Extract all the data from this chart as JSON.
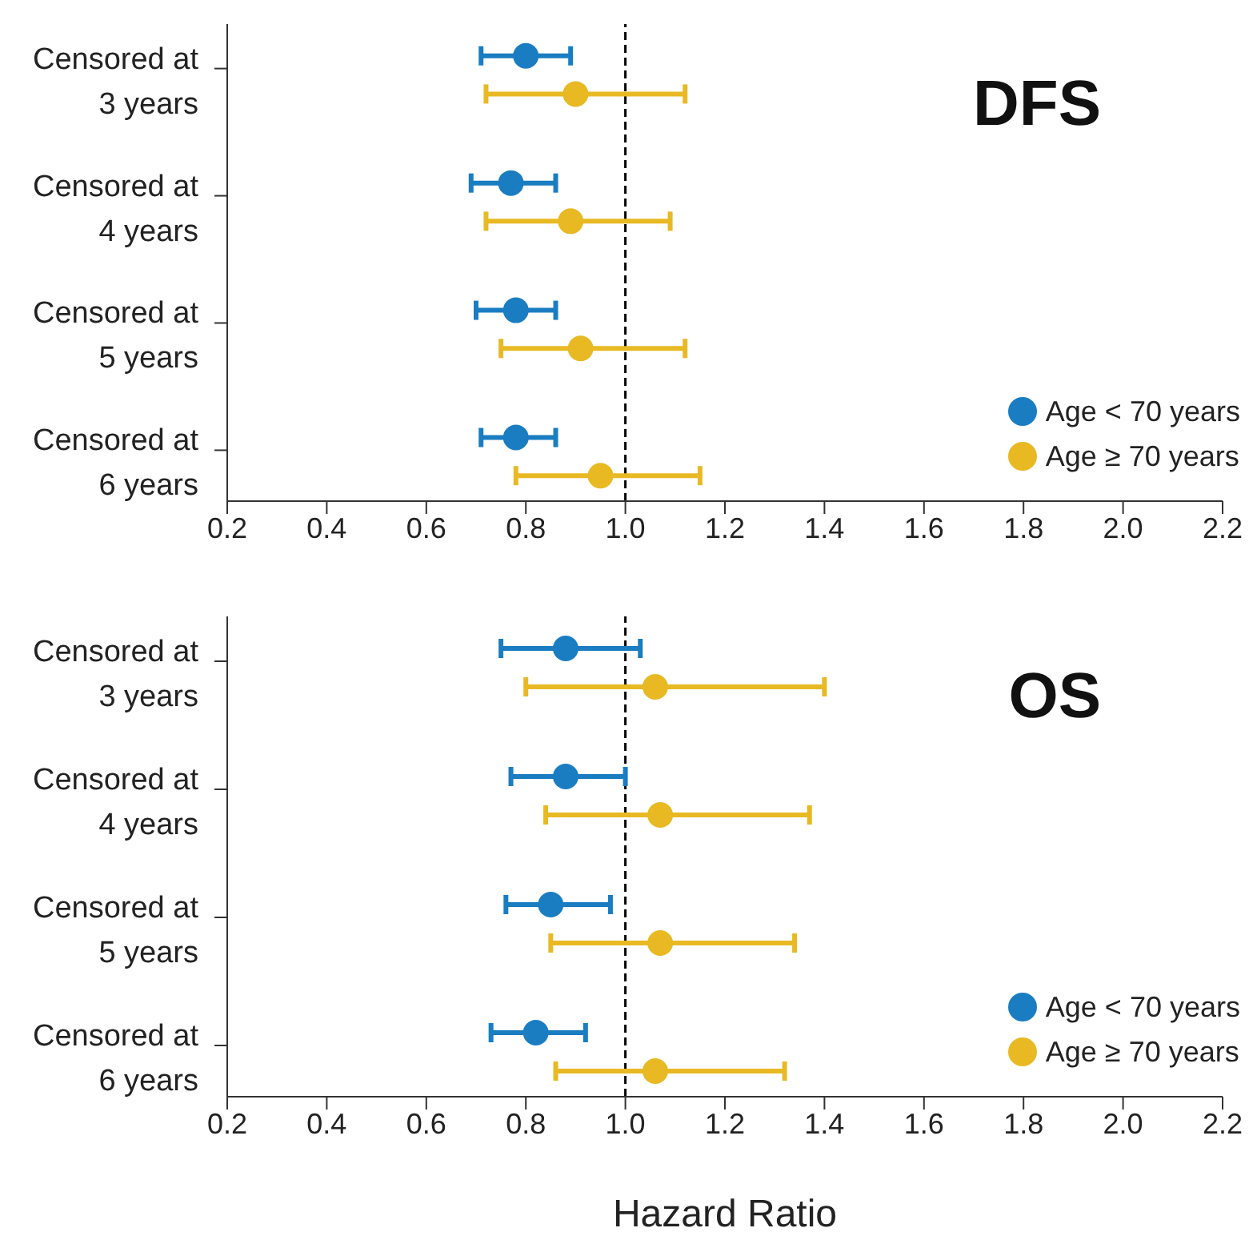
{
  "chart_data": [
    {
      "type": "scatter",
      "orientation": "horizontal",
      "title": "DFS",
      "categories": [
        "Censored at 3 years",
        "Censored at 4 years",
        "Censored at 5 years",
        "Censored at 6 years"
      ],
      "series": [
        {
          "name": "Age < 70 years",
          "color": "#1a7dc2",
          "values": [
            0.8,
            0.77,
            0.78,
            0.78
          ],
          "errors": [
            [
              0.71,
              0.89
            ],
            [
              0.69,
              0.86
            ],
            [
              0.7,
              0.86
            ],
            [
              0.71,
              0.86
            ]
          ]
        },
        {
          "name": "Age ≥ 70 years",
          "color": "#e8b923",
          "values": [
            0.9,
            0.89,
            0.91,
            0.95
          ],
          "errors": [
            [
              0.72,
              1.12
            ],
            [
              0.72,
              1.09
            ],
            [
              0.75,
              1.12
            ],
            [
              0.78,
              1.15
            ]
          ]
        }
      ],
      "xlim": [
        0.2,
        2.2
      ],
      "xticks": [
        {
          "value": 0.2,
          "label": "0.2"
        },
        {
          "value": 0.4,
          "label": "0.4"
        },
        {
          "value": 0.6,
          "label": "0.6"
        },
        {
          "value": 0.8,
          "label": "0.8"
        },
        {
          "value": 1.0,
          "label": "1.0"
        },
        {
          "value": 1.2,
          "label": "1.2"
        },
        {
          "value": 1.4,
          "label": "1.4"
        },
        {
          "value": 1.6,
          "label": "1.6"
        },
        {
          "value": 1.8,
          "label": "1.8"
        },
        {
          "value": 2.0,
          "label": "2.0"
        },
        {
          "value": 2.2,
          "label": "2.2"
        }
      ],
      "ref_lines": [
        {
          "axis": "x",
          "value": 1.0,
          "color": "#000000",
          "line_style": "dashed"
        }
      ],
      "marker": "circle",
      "grid": false,
      "legend": "bottom right"
    },
    {
      "type": "scatter",
      "orientation": "horizontal",
      "title": "OS",
      "xlabel": "Hazard Ratio",
      "categories": [
        "Censored at 3 years",
        "Censored at 4 years",
        "Censored at 5 years",
        "Censored at 6 years"
      ],
      "series": [
        {
          "name": "Age < 70 years",
          "color": "#1a7dc2",
          "values": [
            0.88,
            0.88,
            0.85,
            0.82
          ],
          "errors": [
            [
              0.75,
              1.03
            ],
            [
              0.77,
              1.0
            ],
            [
              0.76,
              0.97
            ],
            [
              0.73,
              0.92
            ]
          ]
        },
        {
          "name": "Age ≥ 70 years",
          "color": "#e8b923",
          "values": [
            1.06,
            1.07,
            1.07,
            1.06
          ],
          "errors": [
            [
              0.8,
              1.4
            ],
            [
              0.84,
              1.37
            ],
            [
              0.85,
              1.34
            ],
            [
              0.86,
              1.32
            ]
          ]
        }
      ],
      "xlim": [
        0.2,
        2.2
      ],
      "xticks": [
        {
          "value": 0.2,
          "label": "0.2"
        },
        {
          "value": 0.4,
          "label": "0.4"
        },
        {
          "value": 0.6,
          "label": "0.6"
        },
        {
          "value": 0.8,
          "label": "0.8"
        },
        {
          "value": 1.0,
          "label": "1.0"
        },
        {
          "value": 1.2,
          "label": "1.2"
        },
        {
          "value": 1.4,
          "label": "1.4"
        },
        {
          "value": 1.6,
          "label": "1.6"
        },
        {
          "value": 1.8,
          "label": "1.8"
        },
        {
          "value": 2.0,
          "label": "2.0"
        },
        {
          "value": 2.2,
          "label": "2.2"
        }
      ],
      "ref_lines": [
        {
          "axis": "x",
          "value": 1.0,
          "color": "#000000",
          "line_style": "dashed"
        }
      ],
      "marker": "circle",
      "grid": false,
      "legend": "bottom right"
    }
  ]
}
